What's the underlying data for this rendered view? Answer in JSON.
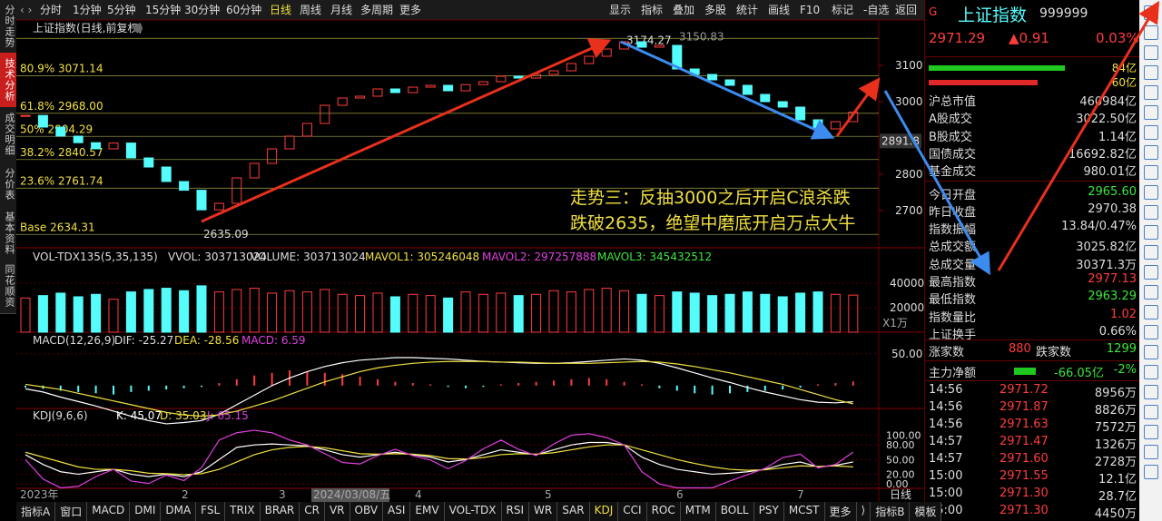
{
  "toolbar": {
    "periods": [
      "分时",
      "1分钟",
      "5分钟",
      "15分钟",
      "30分钟",
      "60分钟",
      "日线",
      "周线",
      "月线",
      "多周期",
      "更多"
    ],
    "tools": [
      "显示",
      "指标",
      "叠加",
      "多股",
      "统计",
      "画线",
      "F10",
      "标记",
      "-自选",
      "返回"
    ]
  },
  "side_tabs": [
    "分时走势",
    "技术分析",
    "成交明细",
    "分价表",
    "基本资料",
    "同花顺资"
  ],
  "price_pane": {
    "title": "上证指数(日线,前复权)",
    "ylim": [
      2600,
      3225
    ],
    "yticks": [
      3100,
      3000,
      2800,
      2700
    ],
    "last_price_label": 2891.8,
    "fib_levels": [
      {
        "ratio": "80.9%",
        "value": 3071.14
      },
      {
        "ratio": "61.8%",
        "value": {
          "value": 2968,
          "label": "2968.00"
        }
      },
      {
        "ratio": "50%",
        "value": 2904.29
      },
      {
        "ratio": "38.2%",
        "value": 2840.57
      },
      {
        "ratio": "23.6%",
        "value": 2761.74
      },
      {
        "ratio": "Base",
        "value": 2634.31
      }
    ],
    "high": 3174.27,
    "low": 2635.09,
    "partial_label": "3150.83",
    "up_color": "#ff3c3c",
    "down_color": "#54fcfc",
    "closes": [
      2962,
      2930,
      2905,
      2887,
      2870,
      2886,
      2845,
      2820,
      2780,
      2756,
      2702,
      2720,
      2790,
      2830,
      2870,
      2905,
      2940,
      2990,
      3010,
      3015,
      3035,
      3025,
      3040,
      3045,
      3030,
      3047,
      3055,
      3070,
      3065,
      3075,
      3085,
      3105,
      3125,
      3145,
      3165,
      3150,
      3155,
      3090,
      3075,
      3060,
      3045,
      3020,
      3000,
      2985,
      2950,
      2925,
      2945,
      2971
    ],
    "note": [
      "走势三：反抽3000之后开启C浪杀跌",
      "跌破2635，绝望中磨底开启万点大牛"
    ]
  },
  "volume_pane": {
    "header": [
      "VOL-TDX135(5,35,135)",
      "VVOL: 303713024",
      "VOLUME: 303713024",
      "MAVOL1: 305246048",
      "MAVOL2: 297257888",
      "MAVOL3: 345432512"
    ],
    "ylim": [
      0,
      55000
    ],
    "yticks": [
      40000,
      20000
    ],
    "unit": "X1万",
    "values": [
      28000,
      30000,
      32000,
      29000,
      31000,
      27000,
      33000,
      35000,
      36000,
      34000,
      38000,
      33000,
      35000,
      36000,
      32000,
      34000,
      33000,
      35000,
      31000,
      30000,
      32000,
      29000,
      31000,
      30000,
      28000,
      33000,
      31000,
      32000,
      30000,
      31000,
      34000,
      33000,
      35000,
      36000,
      34000,
      31000,
      30000,
      33000,
      32000,
      30000,
      31000,
      33000,
      31000,
      29000,
      32000,
      33000,
      31000,
      30371
    ]
  },
  "macd_pane": {
    "header": [
      "MACD(12,26,9)",
      "DIF: -25.27",
      "DEA: -28.56",
      "MACD: 6.59"
    ],
    "ylim": [
      -33,
      64
    ],
    "yticks": [
      {
        "value": 50,
        "label": "50.00"
      }
    ],
    "hist": [
      -3,
      -5,
      -8,
      -10,
      -12,
      -14,
      -10,
      -8,
      -6,
      -4,
      -2,
      4,
      10,
      16,
      20,
      24,
      22,
      20,
      18,
      14,
      10,
      6,
      4,
      2,
      -2,
      -4,
      -2,
      2,
      4,
      6,
      8,
      10,
      12,
      10,
      6,
      2,
      -4,
      -8,
      -12,
      -14,
      -12,
      -10,
      -8,
      -6,
      -3,
      2,
      4,
      6.59
    ],
    "dif": [
      -5,
      -10,
      -18,
      -25,
      -32,
      -40,
      -48,
      -55,
      -60,
      -58,
      -55,
      -45,
      -30,
      -15,
      0,
      12,
      22,
      30,
      36,
      40,
      42,
      44,
      44,
      43,
      42,
      40,
      38,
      37,
      36,
      35,
      35,
      36,
      38,
      40,
      42,
      40,
      35,
      28,
      20,
      12,
      5,
      -3,
      -10,
      -16,
      -22,
      -26,
      -27,
      -25.27
    ],
    "dea": [
      2,
      -2,
      -6,
      -12,
      -18,
      -24,
      -30,
      -36,
      -42,
      -46,
      -48,
      -46,
      -40,
      -32,
      -24,
      -14,
      -4,
      6,
      14,
      22,
      28,
      32,
      35,
      37,
      38,
      38,
      38,
      37,
      37,
      36,
      35,
      35,
      35,
      36,
      37,
      38,
      37,
      34,
      30,
      25,
      20,
      14,
      8,
      2,
      -6,
      -14,
      -22,
      -28.56
    ]
  },
  "kdj_pane": {
    "header": [
      "KDJ(9,6,6)",
      "K: 45.07",
      "D: 35.03",
      "J: 65.15"
    ],
    "ylim": [
      -9,
      125
    ],
    "yticks": [
      {
        "value": 100,
        "label": "100.00"
      },
      {
        "value": 80,
        "label": "80.00"
      },
      {
        "value": 50,
        "label": "50.00"
      },
      {
        "value": 20,
        "label": "20.00"
      },
      {
        "value": 0,
        "label": "0.00"
      }
    ],
    "k": [
      60,
      40,
      25,
      20,
      25,
      30,
      20,
      15,
      20,
      15,
      25,
      50,
      75,
      80,
      82,
      80,
      78,
      70,
      60,
      55,
      60,
      65,
      60,
      55,
      45,
      50,
      60,
      70,
      65,
      60,
      70,
      80,
      85,
      85,
      80,
      55,
      40,
      30,
      25,
      20,
      22,
      25,
      30,
      40,
      45,
      35,
      38,
      45.07
    ],
    "d": [
      65,
      55,
      45,
      35,
      30,
      30,
      27,
      22,
      21,
      19,
      21,
      30,
      45,
      60,
      70,
      75,
      77,
      74,
      68,
      62,
      61,
      62,
      61,
      58,
      52,
      51,
      54,
      60,
      62,
      61,
      64,
      70,
      76,
      80,
      80,
      70,
      60,
      50,
      42,
      35,
      30,
      28,
      29,
      33,
      37,
      36,
      37,
      35.03
    ],
    "j": [
      50,
      10,
      -8,
      -5,
      15,
      30,
      6,
      1,
      18,
      7,
      33,
      90,
      105,
      110,
      105,
      90,
      80,
      62,
      44,
      41,
      58,
      71,
      58,
      49,
      31,
      48,
      72,
      90,
      71,
      58,
      82,
      100,
      103,
      95,
      80,
      25,
      0,
      -8,
      -8,
      -8,
      6,
      19,
      32,
      54,
      61,
      33,
      40,
      65.15
    ]
  },
  "date_axis": [
    "2023年",
    "2",
    "3",
    "2024/03/08/五",
    "4",
    "5",
    "6",
    "7"
  ],
  "period_label": "日线",
  "bottom_tabs": [
    "指标A",
    "窗口",
    "MACD",
    "DMI",
    "DMA",
    "FSL",
    "TRIX",
    "BRAR",
    "CR",
    "VR",
    "OBV",
    "ASI",
    "EMV",
    "VOL-TDX",
    "RSI",
    "WR",
    "SAR",
    "KDJ",
    "CCI",
    "ROC",
    "MTM",
    "BOLL",
    "PSY",
    "MCST",
    "更多",
    "⟩",
    "指标B",
    "模板"
  ],
  "quote": {
    "flag": "G",
    "name": "上证指数",
    "code": "999999",
    "price": "2971.29",
    "change": "▲0.91",
    "pct": "0.03%",
    "buy_vol": "84亿",
    "sell_vol": "60亿"
  },
  "stats": [
    {
      "label": "沪总市值",
      "value": "460984亿"
    },
    {
      "label": "A股成交",
      "value": "3022.50亿"
    },
    {
      "label": "B股成交",
      "value": "1.14亿"
    },
    {
      "label": "国债成交",
      "value": "16692.82亿"
    },
    {
      "label": "基金成交",
      "value": "980.01亿"
    },
    {
      "label": "今日开盘",
      "value": "2965.60",
      "color": "#3ce63c"
    },
    {
      "label": "昨日收盘",
      "value": "2970.38"
    },
    {
      "label": "指数振幅",
      "value": "13.84/0.47%"
    },
    {
      "label": "总成交额",
      "value": "3025.82亿"
    },
    {
      "label": "总成交量",
      "value": "30371.3万"
    },
    {
      "label": "最高指数",
      "value": "2977.13",
      "color": "#ff3c3c"
    },
    {
      "label": "最低指数",
      "value": "2963.29",
      "color": "#3ce63c"
    },
    {
      "label": "指数量比",
      "value": "1.02",
      "color": "#ff3c3c"
    },
    {
      "label": "上证换手",
      "value": "0.66%"
    }
  ],
  "breadth": {
    "up_label": "涨家数",
    "up": "880",
    "down_label": "跌家数",
    "down": "1299"
  },
  "main_flow": {
    "label": "主力净额",
    "value": "-66.05亿",
    "pct": "-2%"
  },
  "trades": [
    [
      "14:56",
      "2971.72",
      "8956万"
    ],
    [
      "14:56",
      "2971.87",
      "8826万"
    ],
    [
      "14:56",
      "2971.63",
      "7572万"
    ],
    [
      "14:57",
      "2971.47",
      "1326万"
    ],
    [
      "14:57",
      "2971.60",
      "2728万"
    ],
    [
      "15:00",
      "2971.55",
      "12.1亿"
    ],
    [
      "15:00",
      "2971.30",
      "28.7亿"
    ],
    [
      "15:00",
      "2971.30",
      "4450万"
    ]
  ]
}
